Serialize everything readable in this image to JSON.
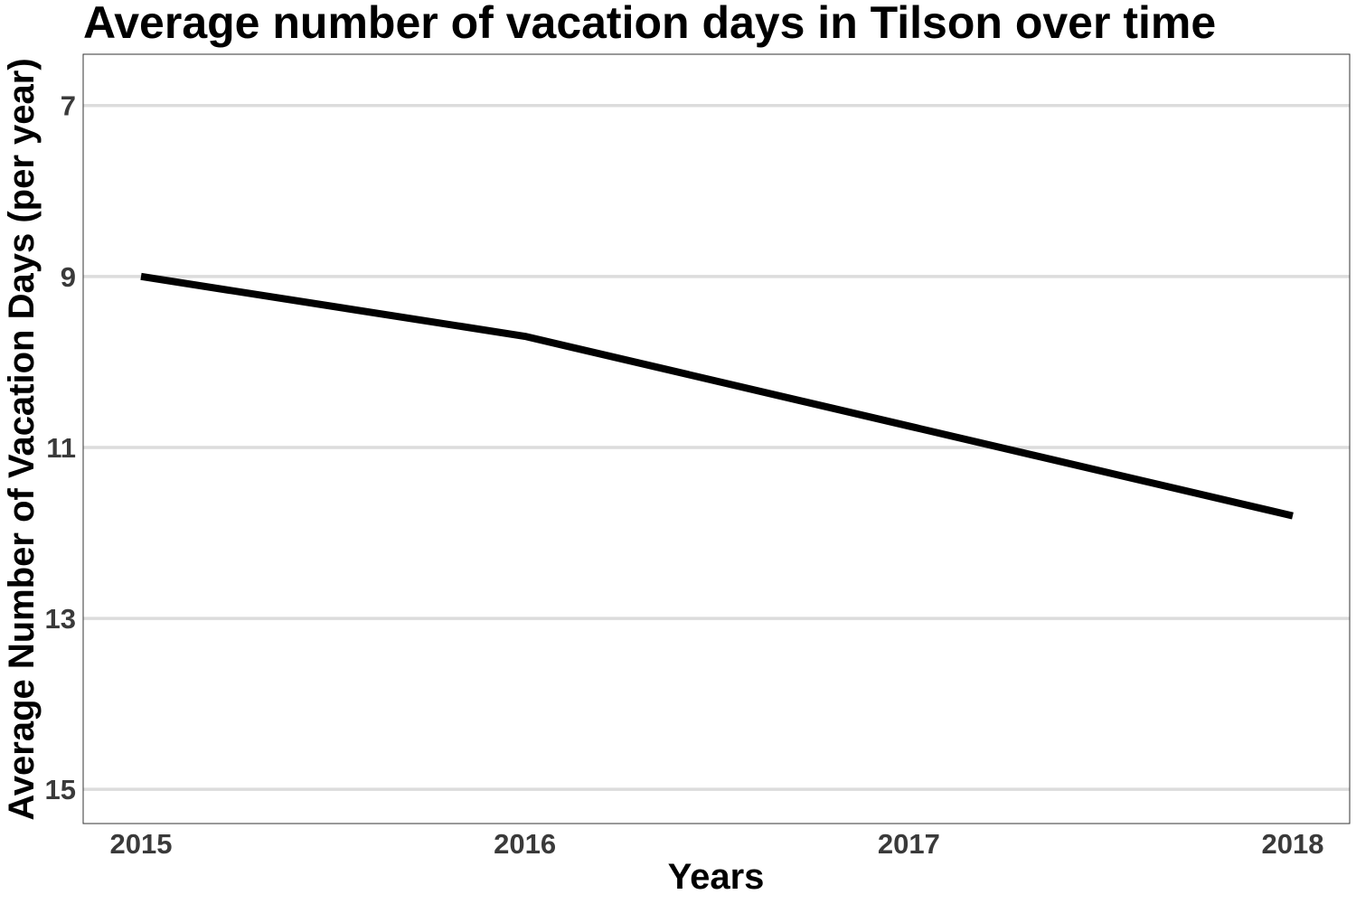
{
  "chart_data": {
    "type": "line",
    "title": "Average number of vacation days in Tilson over time",
    "xlabel": "Years",
    "ylabel": "Average Number of Vacation Days (per year)",
    "x": [
      "2015",
      "2016",
      "2017",
      "2018"
    ],
    "series": [
      {
        "values": [
          9.0,
          9.7,
          10.75,
          11.8
        ],
        "color": "#000000"
      }
    ],
    "ylim": [
      15.4,
      6.4
    ],
    "y_axis_reversed": true,
    "yticks": [
      7,
      9,
      11,
      13,
      15
    ],
    "ytick_labels": [
      "7",
      "9",
      "11",
      "13",
      "15"
    ],
    "xtick_labels": [
      "2015",
      "2016",
      "2017",
      "2018"
    ],
    "grid": "horizontal-major",
    "legend": "none",
    "colors": {
      "line": "#000000",
      "grid": "#dcdcdc",
      "tick_text": "#3a3a3a",
      "background": "#ffffff"
    }
  }
}
